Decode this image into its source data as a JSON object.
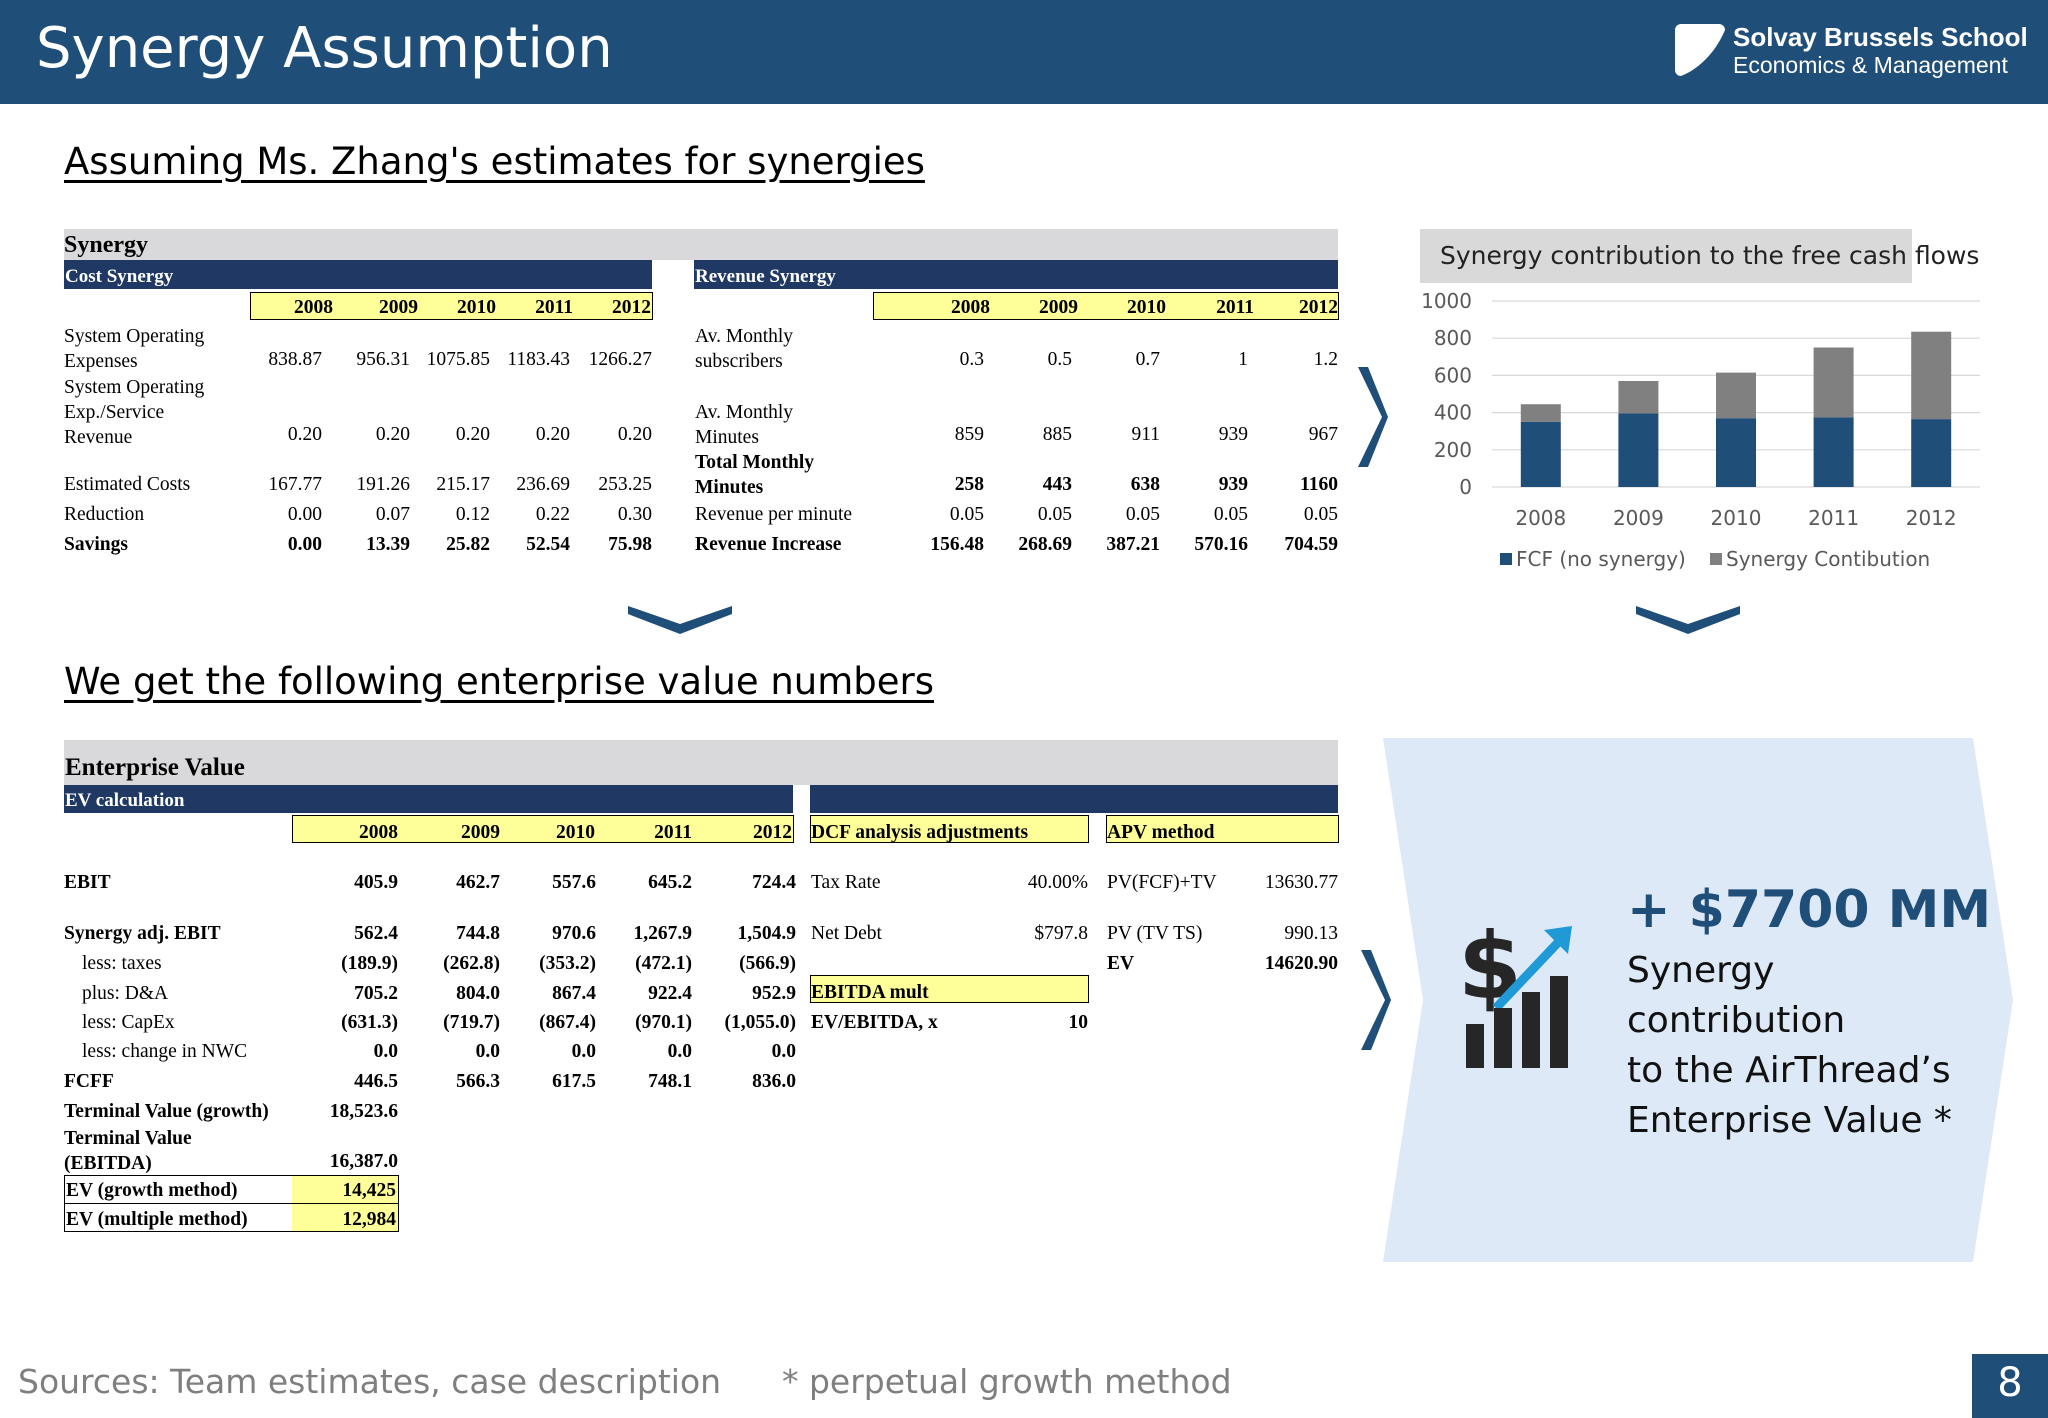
{
  "title": "Synergy Assumption",
  "logo": {
    "line1": "Solvay Brussels School",
    "line2": "Economics & Management"
  },
  "heading1": "Assuming Ms. Zhang's estimates for synergies",
  "heading2": "We get the following enterprise value numbers",
  "synergy": {
    "section_title": "Synergy",
    "cost_title": "Cost Synergy",
    "revenue_title": "Revenue Synergy",
    "years": [
      "2008",
      "2009",
      "2010",
      "2011",
      "2012"
    ],
    "cost_rows": [
      {
        "label": "System Operating Expenses",
        "values": [
          "838.87",
          "956.31",
          "1075.85",
          "1183.43",
          "1266.27"
        ]
      },
      {
        "label": "System Operating Exp./Service Revenue",
        "values": [
          "0.20",
          "0.20",
          "0.20",
          "0.20",
          "0.20"
        ]
      },
      {
        "label": "Estimated Costs",
        "values": [
          "167.77",
          "191.26",
          "215.17",
          "236.69",
          "253.25"
        ]
      },
      {
        "label": "Reduction",
        "values": [
          "0.00",
          "0.07",
          "0.12",
          "0.22",
          "0.30"
        ]
      },
      {
        "label": "Savings",
        "values": [
          "0.00",
          "13.39",
          "25.82",
          "52.54",
          "75.98"
        ]
      }
    ],
    "revenue_rows": [
      {
        "label": "Av. Monthly subscribers",
        "values": [
          "0.3",
          "0.5",
          "0.7",
          "1",
          "1.2"
        ]
      },
      {
        "label": "Av. Monthly Minutes",
        "values": [
          "859",
          "885",
          "911",
          "939",
          "967"
        ]
      },
      {
        "label": "Total Monthly Minutes",
        "values": [
          "258",
          "443",
          "638",
          "939",
          "1160"
        ]
      },
      {
        "label": "Revenue per minute",
        "values": [
          "0.05",
          "0.05",
          "0.05",
          "0.05",
          "0.05"
        ]
      },
      {
        "label": "Revenue Increase",
        "values": [
          "156.48",
          "268.69",
          "387.21",
          "570.16",
          "704.59"
        ]
      }
    ]
  },
  "chart_data": {
    "type": "bar",
    "stacked": true,
    "title": "Synergy contribution to the free cash flows",
    "categories": [
      "2008",
      "2009",
      "2010",
      "2011",
      "2012"
    ],
    "series": [
      {
        "name": "FCF (no synergy)",
        "values": [
          350,
          395,
          370,
          375,
          365
        ],
        "color": "#1f4e79"
      },
      {
        "name": "Synergy Contibution",
        "values": [
          95,
          175,
          245,
          375,
          470
        ],
        "color": "#808080"
      }
    ],
    "ylim": [
      0,
      1000
    ],
    "yticks": [
      "0",
      "200",
      "400",
      "600",
      "800",
      "1000"
    ],
    "legend": "bottom"
  },
  "ev": {
    "section_title": "Enterprise Value",
    "calc_title": "EV calculation",
    "years": [
      "2008",
      "2009",
      "2010",
      "2011",
      "2012"
    ],
    "rows": [
      {
        "label": "EBIT",
        "values": [
          "405.9",
          "462.7",
          "557.6",
          "645.2",
          "724.4"
        ]
      },
      {
        "label": "Synergy adj. EBIT",
        "values": [
          "562.4",
          "744.8",
          "970.6",
          "1,267.9",
          "1,504.9"
        ]
      },
      {
        "label": "less: taxes",
        "values": [
          "(189.9)",
          "(262.8)",
          "(353.2)",
          "(472.1)",
          "(566.9)"
        ]
      },
      {
        "label": "plus: D&A",
        "values": [
          "705.2",
          "804.0",
          "867.4",
          "922.4",
          "952.9"
        ]
      },
      {
        "label": "less: CapEx",
        "values": [
          "(631.3)",
          "(719.7)",
          "(867.4)",
          "(970.1)",
          "(1,055.0)"
        ]
      },
      {
        "label": "less: change in NWC",
        "values": [
          "0.0",
          "0.0",
          "0.0",
          "0.0",
          "0.0"
        ]
      },
      {
        "label": "FCFF",
        "values": [
          "446.5",
          "566.3",
          "617.5",
          "748.1",
          "836.0"
        ]
      }
    ],
    "tv_growth_label": "Terminal Value (growth)",
    "tv_growth_value": "18,523.6",
    "tv_ebitda_label": "Terminal Value (EBITDA)",
    "tv_ebitda_value": "16,387.0",
    "ev_growth_label": "EV (growth method)",
    "ev_growth_value": "14,425",
    "ev_multiple_label": "EV (multiple method)",
    "ev_multiple_value": "12,984",
    "dcf": {
      "title": "DCF analysis adjustments",
      "tax_rate_label": "Tax Rate",
      "tax_rate_value": "40.00%",
      "net_debt_label": "Net Debt",
      "net_debt_value": "$797.8",
      "ebitda_mult_title": "EBITDA mult",
      "ev_ebitda_label": "EV/EBITDA, x",
      "ev_ebitda_value": "10"
    },
    "apv": {
      "title": "APV method",
      "pv_fcf_label": "PV(FCF)+TV",
      "pv_fcf_value": "13630.77",
      "pv_tvts_label": "PV (TV TS)",
      "pv_tvts_value": "990.13",
      "ev_label": "EV",
      "ev_value": "14620.90"
    }
  },
  "callout": {
    "value": "+ $7700 MM",
    "line1": "Synergy",
    "line2": "contribution",
    "line3": "to the AirThread’s",
    "line4": "Enterprise Value *"
  },
  "footer": {
    "sources": "Sources: Team estimates, case description",
    "note": "* perpetual growth method",
    "page": "8"
  },
  "colors": {
    "brand": "#1f4e79",
    "table_header": "#1f3864",
    "highlight": "#ffff99",
    "callout_bg": "#dde9f6"
  }
}
